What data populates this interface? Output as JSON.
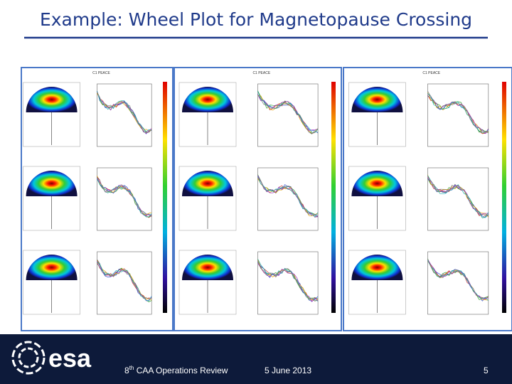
{
  "header": {
    "title": "Example: Wheel Plot for Magnetopause Crossing"
  },
  "panels": [
    {
      "label": "C1 PEACE"
    },
    {
      "label": "C1 PEACE"
    },
    {
      "label": "C1 PEACE"
    }
  ],
  "footer": {
    "logo": "esa",
    "event": {
      "number": "8",
      "suffix": "th",
      "name": " CAA Operations Review"
    },
    "date": "5 June 2013",
    "page": "5"
  }
}
